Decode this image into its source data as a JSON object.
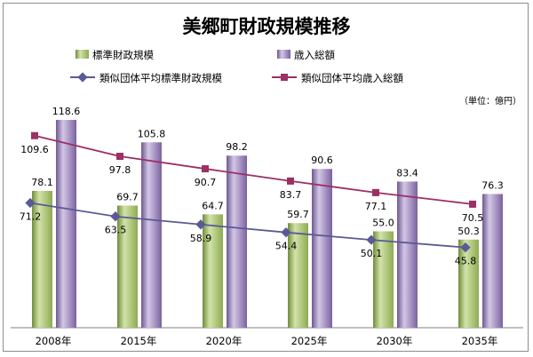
{
  "chart_data": {
    "type": "bar",
    "title": "美郷町財政規模推移",
    "unit_note": "（単位：億円）",
    "categories": [
      "2008年",
      "2015年",
      "2020年",
      "2025年",
      "2030年",
      "2035年"
    ],
    "bar_series": [
      {
        "name": "標準財政規模",
        "values": [
          78.1,
          69.7,
          64.7,
          59.7,
          55.0,
          50.3
        ],
        "color": "#9bbb59"
      },
      {
        "name": "歳入総額",
        "values": [
          118.6,
          105.8,
          98.2,
          90.6,
          83.4,
          76.3
        ],
        "color": "#8064a2"
      }
    ],
    "line_series": [
      {
        "name": "類似団体平均標準財政規模",
        "values": [
          71.2,
          63.5,
          58.9,
          54.4,
          50.1,
          45.8
        ],
        "color": "#5a5a96",
        "marker": "diamond"
      },
      {
        "name": "類似団体平均歳入総額",
        "values": [
          109.6,
          97.8,
          90.7,
          83.7,
          77.1,
          70.5
        ],
        "color": "#9c2f63",
        "marker": "square"
      }
    ],
    "ylim": [
      0,
      130
    ],
    "legend_position": "top",
    "grid": false
  }
}
